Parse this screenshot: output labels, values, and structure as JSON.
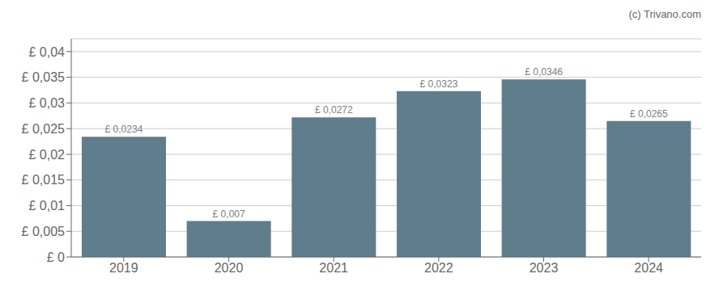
{
  "chart_data": {
    "type": "bar",
    "annotation": "(c) Trivano.com",
    "categories": [
      "2019",
      "2020",
      "2021",
      "2022",
      "2023",
      "2024"
    ],
    "values": [
      0.0234,
      0.007,
      0.0272,
      0.0323,
      0.0346,
      0.0265
    ],
    "value_labels": [
      "£ 0,0234",
      "£ 0,007",
      "£ 0,0272",
      "£ 0,0323",
      "£ 0,0346",
      "£ 0,0265"
    ],
    "data_labels": true,
    "color": "#5f7d8c",
    "ylim": [
      0,
      0.0425
    ],
    "yticks": [
      {
        "value": 0,
        "label": "£ 0"
      },
      {
        "value": 0.005,
        "label": "£ 0,005"
      },
      {
        "value": 0.01,
        "label": "£ 0,01"
      },
      {
        "value": 0.015,
        "label": "£ 0,015"
      },
      {
        "value": 0.02,
        "label": "£ 0,02"
      },
      {
        "value": 0.025,
        "label": "£ 0,025"
      },
      {
        "value": 0.03,
        "label": "£ 0,03"
      },
      {
        "value": 0.035,
        "label": "£ 0,035"
      },
      {
        "value": 0.04,
        "label": "£ 0,04"
      }
    ],
    "grid": true
  }
}
